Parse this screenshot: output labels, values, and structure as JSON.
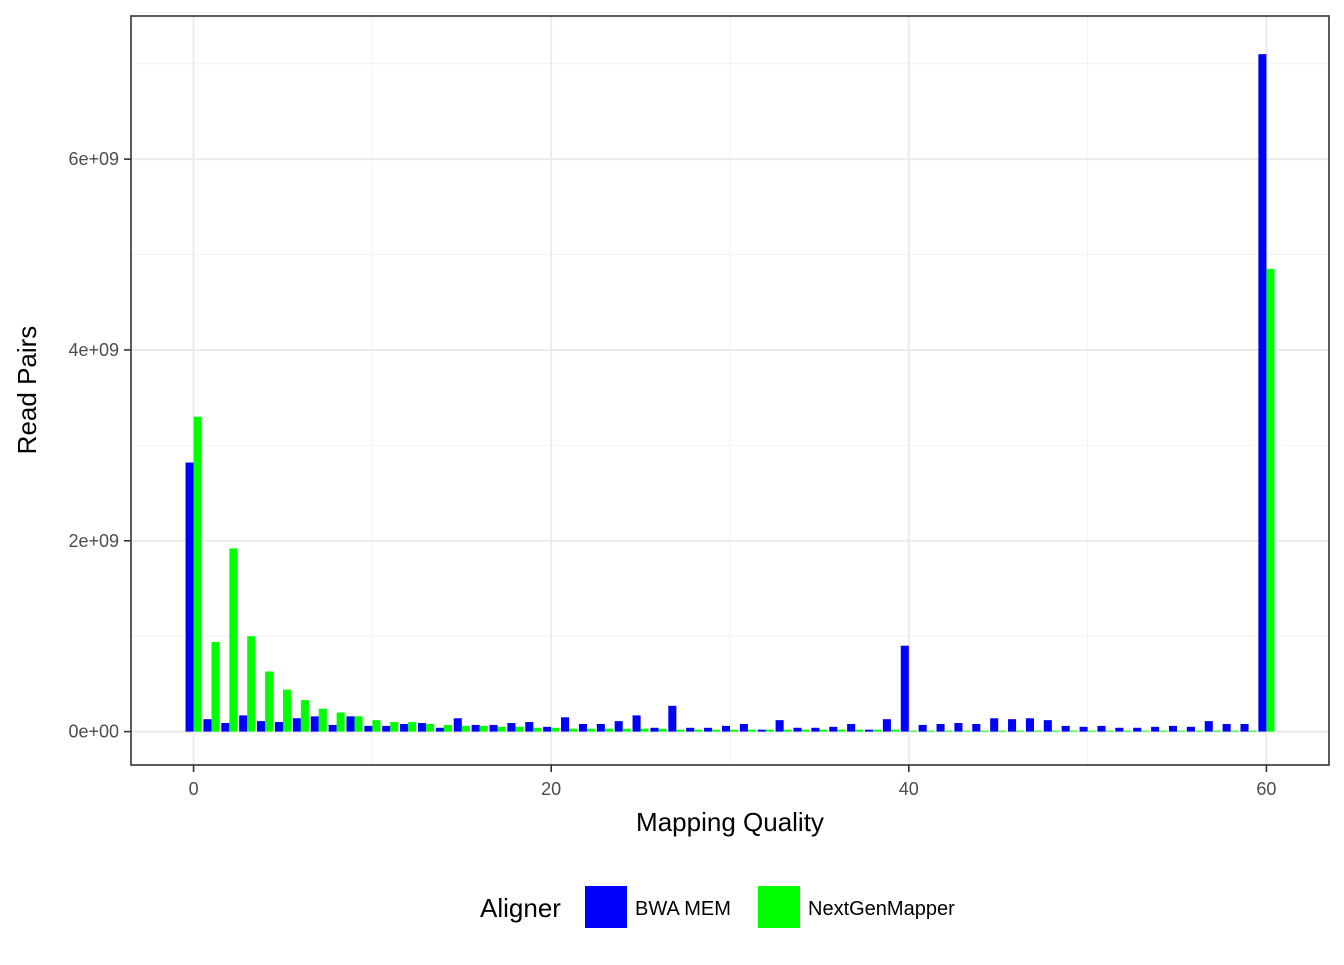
{
  "chart_data": {
    "type": "bar",
    "xlabel": "Mapping Quality",
    "ylabel": "Read Pairs",
    "xlim": [
      -3.5,
      63.5
    ],
    "ylim": [
      -350000000.0,
      7500000000.0
    ],
    "x_ticks": [
      0,
      20,
      40,
      60
    ],
    "x_tick_labels": [
      "0",
      "20",
      "40",
      "60"
    ],
    "y_ticks": [
      0,
      2000000000,
      4000000000,
      6000000000
    ],
    "y_tick_labels": [
      "0e+00",
      "2e+09",
      "4e+09",
      "6e+09"
    ],
    "grid": true,
    "legend": {
      "title": "Aligner",
      "position": "bottom"
    },
    "x": [
      0,
      1,
      2,
      3,
      4,
      5,
      6,
      7,
      8,
      9,
      10,
      11,
      12,
      13,
      14,
      15,
      16,
      17,
      18,
      19,
      20,
      21,
      22,
      23,
      24,
      25,
      26,
      27,
      28,
      29,
      30,
      31,
      32,
      33,
      34,
      35,
      36,
      37,
      38,
      39,
      40,
      41,
      42,
      43,
      44,
      45,
      46,
      47,
      48,
      49,
      50,
      51,
      52,
      53,
      54,
      55,
      56,
      57,
      58,
      59,
      60
    ],
    "series": [
      {
        "name": "BWA MEM",
        "color": "#0000ff",
        "values": [
          2820000000,
          130000000,
          90000000,
          170000000,
          110000000,
          100000000,
          140000000,
          160000000,
          70000000,
          160000000,
          60000000,
          60000000,
          80000000,
          90000000,
          40000000,
          140000000,
          70000000,
          70000000,
          90000000,
          100000000,
          50000000,
          150000000,
          80000000,
          80000000,
          110000000,
          170000000,
          40000000,
          270000000,
          40000000,
          40000000,
          60000000,
          80000000,
          20000000,
          120000000,
          40000000,
          40000000,
          50000000,
          80000000,
          20000000,
          130000000,
          900000000,
          70000000,
          80000000,
          90000000,
          80000000,
          140000000,
          130000000,
          140000000,
          120000000,
          60000000,
          50000000,
          60000000,
          40000000,
          40000000,
          50000000,
          60000000,
          50000000,
          110000000,
          80000000,
          80000000,
          7100000000
        ]
      },
      {
        "name": "NextGenMapper",
        "color": "#00ff00",
        "values": [
          3300000000,
          940000000,
          1920000000,
          1000000000,
          630000000,
          440000000,
          330000000,
          240000000,
          200000000,
          160000000,
          120000000,
          100000000,
          100000000,
          80000000,
          70000000,
          60000000,
          60000000,
          50000000,
          50000000,
          40000000,
          40000000,
          30000000,
          30000000,
          30000000,
          30000000,
          30000000,
          30000000,
          20000000,
          20000000,
          20000000,
          20000000,
          20000000,
          20000000,
          20000000,
          20000000,
          20000000,
          20000000,
          20000000,
          20000000,
          20000000,
          10000000,
          10000000,
          10000000,
          10000000,
          10000000,
          10000000,
          10000000,
          10000000,
          10000000,
          10000000,
          10000000,
          10000000,
          10000000,
          10000000,
          10000000,
          10000000,
          10000000,
          10000000,
          10000000,
          10000000,
          4850000000
        ]
      }
    ]
  }
}
